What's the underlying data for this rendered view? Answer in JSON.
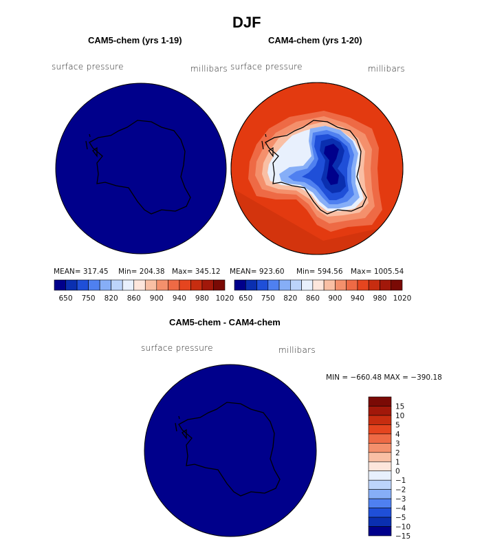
{
  "figure": {
    "title": "DJF",
    "panels": [
      {
        "id": "cam5",
        "title": "CAM5-chem (yrs 1-19)",
        "field_label": "surface pressure",
        "units": "millibars",
        "mean_text": "MEAN= 317.45",
        "min_text": "Min= 204.38",
        "max_text": "Max= 345.12"
      },
      {
        "id": "cam4",
        "title": "CAM4-chem (yrs 1-20)",
        "field_label": "surface pressure",
        "units": "millibars",
        "mean_text": "MEAN= 923.60",
        "min_text": "Min= 594.56",
        "max_text": "Max= 1005.54"
      },
      {
        "id": "diff",
        "title": "CAM5-chem - CAM4-chem",
        "field_label": "surface pressure",
        "units": "millibars",
        "minmax_text": "MIN = −660.48 MAX = −390.18"
      }
    ],
    "colorbar_main": {
      "labels": [
        "650",
        "750",
        "820",
        "860",
        "900",
        "940",
        "980",
        "1020"
      ],
      "colors": [
        "#00008b",
        "#0a2fb0",
        "#1f4fd8",
        "#4f80f0",
        "#86aef7",
        "#bcd4fb",
        "#e8f0fd",
        "#fde6dc",
        "#f9bfa4",
        "#f4906c",
        "#ee6a45",
        "#e5451f",
        "#c72d10",
        "#a2180a",
        "#7a0a05"
      ]
    },
    "colorbar_diff": {
      "labels": [
        "15",
        "10",
        "5",
        "4",
        "3",
        "2",
        "1",
        "0",
        "−1",
        "−2",
        "−3",
        "−4",
        "−5",
        "−10",
        "−15"
      ],
      "colors": [
        "#7a0a05",
        "#a2180a",
        "#c72d10",
        "#e5451f",
        "#ee6a45",
        "#f4906c",
        "#f9bfa4",
        "#fde6dc",
        "#e8f0fd",
        "#bcd4fb",
        "#86aef7",
        "#4f80f0",
        "#1f4fd8",
        "#0a2fb0",
        "#00008b"
      ]
    },
    "colors": {
      "deep_blue": "#00008b",
      "ocean_red": "#e33a10",
      "coast_line": "#000000"
    }
  }
}
